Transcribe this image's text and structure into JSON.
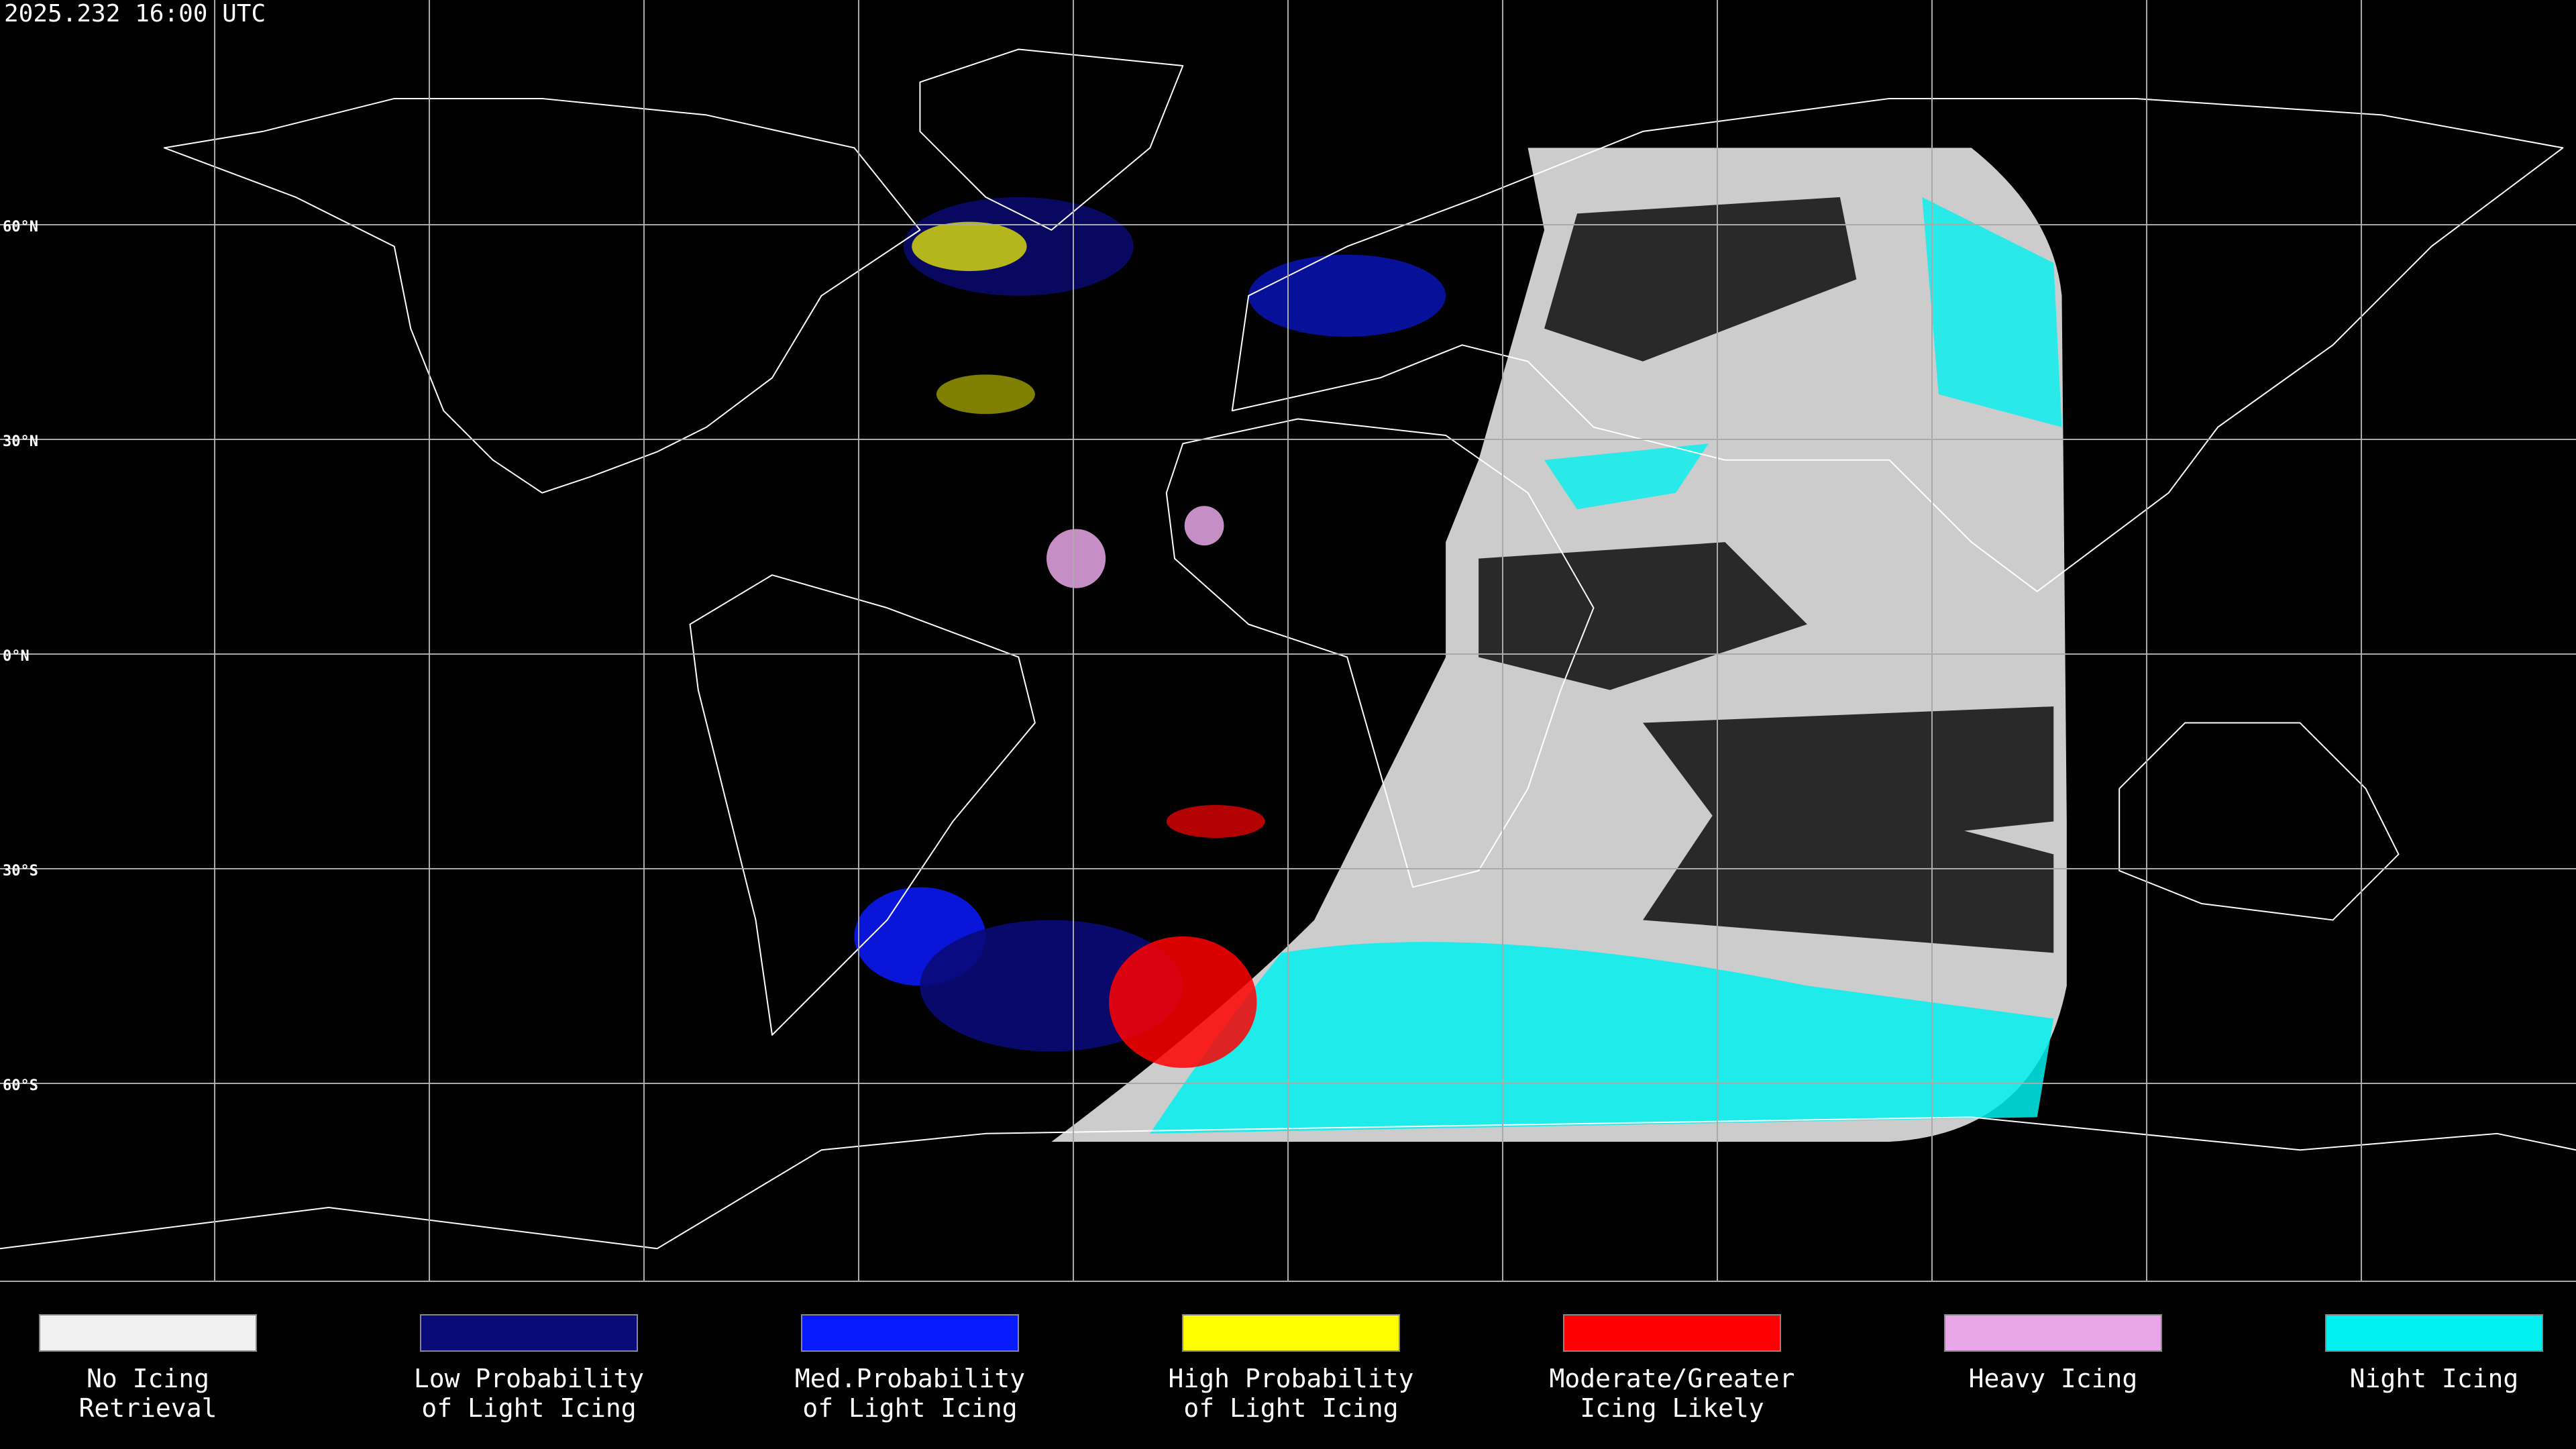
{
  "header": {
    "timestamp": "2025.232 16:00 UTC"
  },
  "latitude_labels": [
    "60°N",
    "30°N",
    "0°N",
    "30°S",
    "60°S"
  ],
  "legend": [
    {
      "label_lines": [
        "No Icing",
        "Retrieval"
      ],
      "color": "#f0f0f0"
    },
    {
      "label_lines": [
        "Low Probability",
        "of Light Icing"
      ],
      "color": "#0a0a78"
    },
    {
      "label_lines": [
        "Med.Probability",
        "of Light Icing"
      ],
      "color": "#0a1aff"
    },
    {
      "label_lines": [
        "High Probability",
        "of Light Icing"
      ],
      "color": "#ffff00"
    },
    {
      "label_lines": [
        "Moderate/Greater",
        "Icing Likely"
      ],
      "color": "#ff0000"
    },
    {
      "label_lines": [
        "Heavy Icing"
      ],
      "color": "#e8a8e8"
    },
    {
      "label_lines": [
        "Night Icing"
      ],
      "color": "#00f0f0"
    }
  ]
}
